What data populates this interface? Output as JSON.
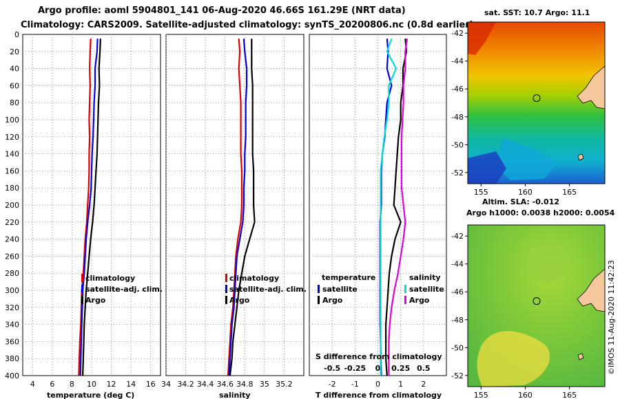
{
  "header": {
    "line1": "Argo profile: aoml 5904801_141 06-Aug-2020 46.66S 161.29E (NRT data)",
    "line2": "Climatology: CARS2009. Satellite-adjusted climatology: synTS_20200806.nc (0.8d earlier)"
  },
  "colors": {
    "climatology": "#dd0000",
    "satellite_adj": "#0000dd",
    "argo": "#000000",
    "t_satellite": "#0000dd",
    "s_satellite": "#00dddd",
    "s_argo": "#dd00dd",
    "land": "#f7c79c"
  },
  "chart_data": [
    {
      "type": "line",
      "id": "temperature",
      "xlabel": "temperature (deg C)",
      "ylabel": "depth",
      "xlim": [
        3,
        17
      ],
      "ylim": [
        400,
        0
      ],
      "xticks": [
        "4",
        "6",
        "8",
        "10",
        "12",
        "14",
        "16"
      ],
      "yticks": [
        "0",
        "20",
        "40",
        "60",
        "80",
        "100",
        "120",
        "140",
        "160",
        "180",
        "200",
        "220",
        "240",
        "260",
        "280",
        "300",
        "320",
        "340",
        "360",
        "380",
        "400"
      ],
      "depth": [
        5,
        20,
        40,
        60,
        80,
        100,
        120,
        140,
        160,
        180,
        200,
        220,
        240,
        260,
        280,
        300,
        320,
        340,
        360,
        380,
        400
      ],
      "legend": [
        "climatology",
        "satellite-adj. clim.",
        "Argo"
      ],
      "series": [
        {
          "name": "climatology",
          "values": [
            9.9,
            9.85,
            9.8,
            9.85,
            9.8,
            9.75,
            9.8,
            9.75,
            9.75,
            9.7,
            9.6,
            9.5,
            9.35,
            9.25,
            9.15,
            9.0,
            8.95,
            8.9,
            8.8,
            8.75,
            8.7
          ]
        },
        {
          "name": "satellite-adj. clim.",
          "values": [
            10.6,
            10.55,
            10.35,
            10.35,
            10.25,
            10.2,
            10.15,
            10.05,
            10.0,
            9.95,
            9.8,
            9.6,
            9.45,
            9.35,
            9.25,
            9.1,
            9.05,
            9.0,
            8.95,
            8.9,
            8.85
          ]
        },
        {
          "name": "Argo",
          "values": [
            10.9,
            10.85,
            10.75,
            10.8,
            10.7,
            10.65,
            10.6,
            10.55,
            10.45,
            10.35,
            10.25,
            10.1,
            9.9,
            9.75,
            9.6,
            9.45,
            9.35,
            9.25,
            9.2,
            9.15,
            9.1
          ]
        }
      ]
    },
    {
      "type": "line",
      "id": "salinity",
      "xlabel": "salinity",
      "ylabel": "depth",
      "xlim": [
        34.0,
        35.4
      ],
      "ylim": [
        400,
        0
      ],
      "xticks": [
        "34",
        "34.2",
        "34.4",
        "34.6",
        "34.8",
        "35",
        "35.2"
      ],
      "depth": [
        5,
        20,
        40,
        60,
        80,
        100,
        120,
        140,
        160,
        180,
        200,
        220,
        240,
        260,
        280,
        300,
        320,
        340,
        360,
        380,
        400
      ],
      "legend": [
        "climatology",
        "satellite-adj. clim.",
        "Argo"
      ],
      "series": [
        {
          "name": "climatology",
          "values": [
            34.74,
            34.75,
            34.74,
            34.75,
            34.76,
            34.76,
            34.76,
            34.76,
            34.77,
            34.77,
            34.77,
            34.76,
            34.73,
            34.71,
            34.7,
            34.69,
            34.68,
            34.66,
            34.65,
            34.64,
            34.63
          ]
        },
        {
          "name": "satellite-adj. clim.",
          "values": [
            34.79,
            34.8,
            34.82,
            34.82,
            34.81,
            34.81,
            34.81,
            34.8,
            34.8,
            34.79,
            34.79,
            34.78,
            34.75,
            34.72,
            34.71,
            34.7,
            34.69,
            34.67,
            34.66,
            34.65,
            34.64
          ]
        },
        {
          "name": "Argo",
          "values": [
            34.87,
            34.87,
            34.87,
            34.88,
            34.88,
            34.88,
            34.88,
            34.88,
            34.89,
            34.89,
            34.89,
            34.9,
            34.85,
            34.8,
            34.77,
            34.74,
            34.72,
            34.7,
            34.68,
            34.67,
            34.65
          ]
        }
      ]
    },
    {
      "type": "line",
      "id": "differences",
      "xlabel": "T difference from climatology",
      "xlabel_top": "S difference from climatology",
      "ylabel": "depth",
      "xlim": [
        -3,
        3
      ],
      "ylim": [
        400,
        0
      ],
      "xticks": [
        "-2",
        "-1",
        "0",
        "1",
        "2"
      ],
      "xticks_top": [
        "-0.5",
        "-0.25",
        "0",
        "0.25",
        "0.5"
      ],
      "depth": [
        5,
        20,
        40,
        60,
        80,
        100,
        120,
        140,
        160,
        180,
        200,
        220,
        240,
        260,
        280,
        300,
        320,
        340,
        360,
        380,
        400
      ],
      "legend_title_t": "temperature",
      "legend_title_s": "salinity",
      "legend_t": [
        "satellite",
        "Argo"
      ],
      "legend_s": [
        "satellite",
        "Argo"
      ],
      "series": [
        {
          "name": "temperature satellite",
          "values": [
            0.4,
            0.45,
            0.4,
            0.6,
            0.4,
            0.35,
            0.3,
            0.2,
            0.15,
            0.15,
            0.15,
            0.1,
            0.1,
            0.1,
            0.1,
            0.1,
            0.1,
            0.1,
            0.12,
            0.13,
            0.15
          ]
        },
        {
          "name": "temperature Argo",
          "values": [
            1.2,
            1.25,
            1.1,
            1.1,
            1.0,
            1.0,
            0.9,
            0.85,
            0.8,
            0.75,
            0.7,
            1.0,
            0.75,
            0.6,
            0.5,
            0.45,
            0.4,
            0.35,
            0.35,
            0.35,
            0.4
          ]
        },
        {
          "name": "salinity satellite",
          "values": [
            0.15,
            0.1,
            0.2,
            0.12,
            0.12,
            0.1,
            0.07,
            0.05,
            0.03,
            0.03,
            0.03,
            0.03,
            0.03,
            0.03,
            0.03,
            0.03,
            0.03,
            0.03,
            0.03,
            0.03,
            0.03
          ]
        },
        {
          "name": "salinity Argo",
          "values": [
            0.32,
            0.3,
            0.3,
            0.28,
            0.28,
            0.27,
            0.26,
            0.26,
            0.26,
            0.26,
            0.28,
            0.3,
            0.28,
            0.25,
            0.22,
            0.18,
            0.15,
            0.13,
            0.12,
            0.12,
            0.12
          ]
        }
      ]
    },
    {
      "type": "heatmap",
      "id": "sst_map",
      "title": "sat. SST: 10.7 Argo: 11.1",
      "xticks": [
        "155",
        "160",
        "165"
      ],
      "yticks": [
        "-42",
        "-44",
        "-46",
        "-48",
        "-50",
        "-52"
      ],
      "xlim": [
        153.5,
        169
      ],
      "ylim": [
        -52.8,
        -41.2
      ],
      "marker": {
        "lon": 161.29,
        "lat": -46.66
      }
    },
    {
      "type": "heatmap",
      "id": "sla_map",
      "title": "Altim. SLA: -0.012",
      "subtitle": "Argo h1000: 0.0038 h2000: 0.0054",
      "xticks": [
        "155",
        "160",
        "165"
      ],
      "yticks": [
        "-42",
        "-44",
        "-46",
        "-48",
        "-50",
        "-52"
      ],
      "xlim": [
        153.5,
        169
      ],
      "ylim": [
        -52.8,
        -41.2
      ],
      "marker": {
        "lon": 161.29,
        "lat": -46.66
      }
    }
  ],
  "footer": {
    "stamp": "©IMOS 11-Aug-2020 11:42:23"
  }
}
